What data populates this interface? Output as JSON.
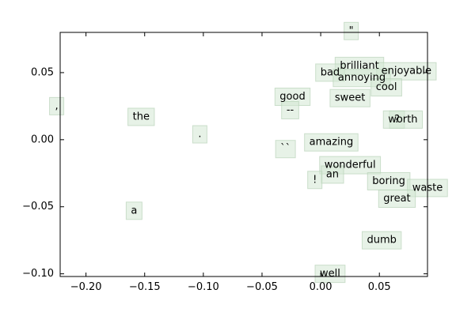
{
  "chart_data": {
    "type": "scatter",
    "title": "",
    "xlabel": "",
    "ylabel": "",
    "xlim": [
      -0.222,
      0.091
    ],
    "ylim": [
      -0.102,
      0.08
    ],
    "x_ticks": [
      -0.2,
      -0.15,
      -0.1,
      -0.05,
      0.0,
      0.05
    ],
    "x_tick_labels": [
      "−0.20",
      "−0.15",
      "−0.10",
      "−0.05",
      "0.00",
      "0.05"
    ],
    "y_ticks": [
      -0.1,
      -0.05,
      0.0,
      0.05
    ],
    "y_tick_labels": [
      "−0.10",
      "−0.05",
      "0.00",
      "0.05"
    ],
    "grid": false,
    "points": [
      {
        "label": "\"",
        "x": 0.026,
        "y": 0.081
      },
      {
        "label": "brilliant",
        "x": 0.033,
        "y": 0.055
      },
      {
        "label": "enjoyable",
        "x": 0.073,
        "y": 0.051
      },
      {
        "label": "bad",
        "x": 0.008,
        "y": 0.05
      },
      {
        "label": "annoying",
        "x": 0.035,
        "y": 0.046
      },
      {
        "label": "cool",
        "x": 0.056,
        "y": 0.039
      },
      {
        "label": "good",
        "x": -0.024,
        "y": 0.032
      },
      {
        "label": "sweet",
        "x": 0.025,
        "y": 0.031
      },
      {
        "label": "--",
        "x": -0.026,
        "y": 0.022
      },
      {
        "label": ",",
        "x": -0.225,
        "y": 0.025
      },
      {
        "label": "the",
        "x": -0.153,
        "y": 0.017
      },
      {
        "label": "?",
        "x": 0.065,
        "y": 0.015
      },
      {
        "label": "worth",
        "x": 0.07,
        "y": 0.015
      },
      {
        "label": ".",
        "x": -0.103,
        "y": 0.004
      },
      {
        "label": "amazing",
        "x": 0.009,
        "y": -0.002
      },
      {
        "label": "``",
        "x": -0.03,
        "y": -0.007
      },
      {
        "label": "wonderful",
        "x": 0.025,
        "y": -0.019
      },
      {
        "label": "an",
        "x": 0.01,
        "y": -0.026
      },
      {
        "label": "!",
        "x": -0.005,
        "y": -0.03
      },
      {
        "label": "boring",
        "x": 0.058,
        "y": -0.031
      },
      {
        "label": "waste",
        "x": 0.091,
        "y": -0.036
      },
      {
        "label": "great",
        "x": 0.065,
        "y": -0.044
      },
      {
        "label": "a",
        "x": -0.159,
        "y": -0.053
      },
      {
        "label": "dumb",
        "x": 0.052,
        "y": -0.075
      },
      {
        "label": "well",
        "x": 0.008,
        "y": -0.1
      }
    ]
  }
}
